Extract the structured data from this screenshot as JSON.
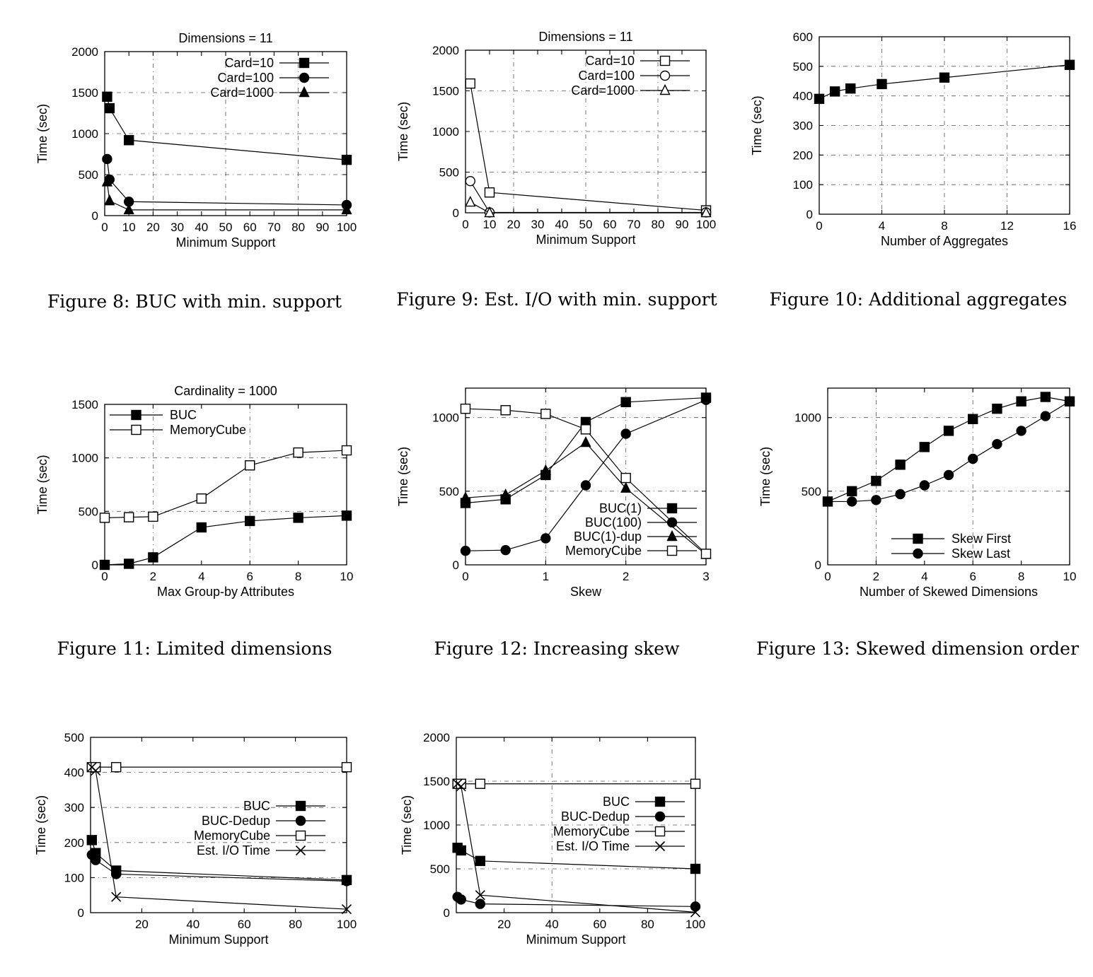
{
  "chart_data": [
    {
      "type": "line",
      "title": "Dimensions = 11",
      "caption": "Figure 8: BUC with min. support",
      "xlabel": "Minimum Support",
      "ylabel": "Time (sec)",
      "xlim": [
        0,
        100
      ],
      "ylim": [
        0,
        2000
      ],
      "xticks": [
        0,
        10,
        20,
        30,
        40,
        50,
        60,
        70,
        80,
        90,
        100
      ],
      "yticks": [
        0,
        500,
        1000,
        1500,
        2000
      ],
      "xgrid": [
        20,
        50,
        80
      ],
      "ygrid": [
        500,
        1000,
        1500
      ],
      "legend_position": "top-right",
      "series": [
        {
          "name": "Card=10",
          "marker": "filled-square",
          "x": [
            1,
            2,
            10,
            100
          ],
          "y": [
            1450,
            1310,
            920,
            680
          ]
        },
        {
          "name": "Card=100",
          "marker": "filled-circle",
          "x": [
            1,
            2,
            10,
            100
          ],
          "y": [
            690,
            440,
            170,
            130
          ]
        },
        {
          "name": "Card=1000",
          "marker": "filled-triangle",
          "x": [
            1,
            2,
            10,
            100
          ],
          "y": [
            410,
            180,
            70,
            70
          ]
        }
      ]
    },
    {
      "type": "line",
      "title": "Dimensions = 11",
      "caption": "Figure 9: Est. I/O with min. support",
      "xlabel": "Minimum Support",
      "ylabel": "Time (sec)",
      "xlim": [
        0,
        100
      ],
      "ylim": [
        0,
        2000
      ],
      "xticks": [
        0,
        10,
        20,
        30,
        40,
        50,
        60,
        70,
        80,
        90,
        100
      ],
      "yticks": [
        0,
        500,
        1000,
        1500,
        2000
      ],
      "xgrid": [
        20,
        50,
        80
      ],
      "ygrid": [
        500,
        1000,
        1500
      ],
      "legend_position": "top-right",
      "series": [
        {
          "name": "Card=10",
          "marker": "open-square",
          "x": [
            2,
            10,
            100
          ],
          "y": [
            1590,
            250,
            30
          ]
        },
        {
          "name": "Card=100",
          "marker": "open-circle",
          "x": [
            2,
            10,
            100
          ],
          "y": [
            390,
            5,
            5
          ]
        },
        {
          "name": "Card=1000",
          "marker": "open-triangle",
          "x": [
            2,
            10,
            100
          ],
          "y": [
            130,
            0,
            0
          ]
        }
      ]
    },
    {
      "type": "line",
      "title": "",
      "caption": "Figure 10: Additional aggregates",
      "xlabel": "Number of Aggregates",
      "ylabel": "Time (sec)",
      "xlim": [
        0,
        16
      ],
      "ylim": [
        0,
        600
      ],
      "xticks": [
        0,
        4,
        8,
        12,
        16
      ],
      "yticks": [
        0,
        100,
        200,
        300,
        400,
        500,
        600
      ],
      "xgrid": [
        4,
        8,
        12
      ],
      "ygrid": [
        100,
        200,
        300,
        400,
        500
      ],
      "series": [
        {
          "name": "",
          "marker": "filled-square",
          "x": [
            0,
            1,
            2,
            4,
            8,
            16
          ],
          "y": [
            390,
            415,
            425,
            440,
            462,
            505
          ]
        }
      ]
    },
    {
      "type": "line",
      "title": "Cardinality = 1000",
      "caption": "Figure 11: Limited dimensions",
      "xlabel": "Max Group-by Attributes",
      "ylabel": "Time (sec)",
      "xlim": [
        0,
        10
      ],
      "ylim": [
        0,
        1500
      ],
      "xticks": [
        0,
        2,
        4,
        6,
        8,
        10
      ],
      "yticks": [
        0,
        500,
        1000,
        1500
      ],
      "xgrid": [
        2,
        6
      ],
      "ygrid": [
        500,
        1000
      ],
      "legend_position": "top-left",
      "series": [
        {
          "name": "BUC",
          "marker": "filled-square",
          "x": [
            0,
            1,
            2,
            4,
            6,
            8,
            10
          ],
          "y": [
            0,
            10,
            70,
            350,
            410,
            440,
            460
          ]
        },
        {
          "name": "MemoryCube",
          "marker": "open-square",
          "x": [
            0,
            1,
            2,
            4,
            6,
            8,
            10
          ],
          "y": [
            440,
            445,
            450,
            620,
            930,
            1050,
            1070
          ]
        }
      ]
    },
    {
      "type": "line",
      "title": "",
      "caption": "Figure 12: Increasing skew",
      "xlabel": "Skew",
      "ylabel": "Time (sec)",
      "xlim": [
        0,
        3
      ],
      "ylim": [
        0,
        1200
      ],
      "xticks": [
        0,
        1,
        2,
        3
      ],
      "yticks": [
        0,
        500,
        1000
      ],
      "xgrid": [
        1,
        2
      ],
      "ygrid": [
        500,
        1000
      ],
      "legend_position": "bottom-right",
      "series": [
        {
          "name": "BUC(1)",
          "marker": "filled-square",
          "x": [
            0,
            0.5,
            1,
            1.5,
            2,
            3
          ],
          "y": [
            420,
            445,
            610,
            970,
            1105,
            1135
          ]
        },
        {
          "name": "BUC(100)",
          "marker": "filled-circle",
          "x": [
            0,
            0.5,
            1,
            1.5,
            2,
            3
          ],
          "y": [
            95,
            100,
            180,
            540,
            890,
            1120
          ]
        },
        {
          "name": "BUC(1)-dup",
          "marker": "filled-triangle",
          "x": [
            0,
            0.5,
            1,
            1.5,
            2,
            3
          ],
          "y": [
            455,
            475,
            640,
            830,
            520,
            70
          ]
        },
        {
          "name": "MemoryCube",
          "marker": "open-square",
          "x": [
            0,
            0.5,
            1,
            1.5,
            2,
            3
          ],
          "y": [
            1060,
            1050,
            1025,
            920,
            590,
            75
          ]
        }
      ]
    },
    {
      "type": "line",
      "title": "",
      "caption": "Figure 13: Skewed dimension order",
      "xlabel": "Number of Skewed Dimensions",
      "ylabel": "Time (sec)",
      "xlim": [
        0,
        10
      ],
      "ylim": [
        0,
        1200
      ],
      "xticks": [
        0,
        2,
        4,
        6,
        8,
        10
      ],
      "yticks": [
        0,
        500,
        1000
      ],
      "xgrid": [
        2,
        6
      ],
      "ygrid": [
        500,
        1000
      ],
      "legend_position": "bottom-right",
      "series": [
        {
          "name": "Skew First",
          "marker": "filled-square",
          "x": [
            0,
            1,
            2,
            3,
            4,
            5,
            6,
            7,
            8,
            9,
            10
          ],
          "y": [
            430,
            500,
            570,
            680,
            800,
            910,
            990,
            1060,
            1110,
            1140,
            1110
          ]
        },
        {
          "name": "Skew Last",
          "marker": "filled-circle",
          "x": [
            0,
            1,
            2,
            3,
            4,
            5,
            6,
            7,
            8,
            9,
            10
          ],
          "y": [
            430,
            430,
            440,
            480,
            540,
            610,
            720,
            820,
            910,
            1010,
            1110
          ]
        }
      ]
    },
    {
      "type": "line",
      "title": "",
      "caption": "",
      "xlabel": "Minimum Support",
      "ylabel": "Time (sec)",
      "xlim": [
        0,
        100
      ],
      "ylim": [
        0,
        500
      ],
      "xticks": [
        20,
        40,
        60,
        80,
        100
      ],
      "yticks": [
        0,
        100,
        200,
        300,
        400,
        500
      ],
      "xgrid": [],
      "ygrid": [
        100,
        200,
        300,
        400
      ],
      "legend_position": "center-right",
      "series": [
        {
          "name": "BUC",
          "marker": "filled-square",
          "x": [
            0.5,
            2,
            10,
            100
          ],
          "y": [
            207,
            170,
            120,
            93
          ]
        },
        {
          "name": "BUC-Dedup",
          "marker": "filled-circle",
          "x": [
            0.5,
            2,
            10,
            100
          ],
          "y": [
            165,
            150,
            110,
            90
          ]
        },
        {
          "name": "MemoryCube",
          "marker": "open-square",
          "x": [
            0.5,
            2,
            10,
            100
          ],
          "y": [
            415,
            415,
            415,
            415
          ]
        },
        {
          "name": "Est. I/O Time",
          "marker": "cross",
          "x": [
            0.5,
            2,
            10,
            100
          ],
          "y": [
            415,
            405,
            45,
            10
          ]
        }
      ]
    },
    {
      "type": "line",
      "title": "",
      "caption": "",
      "xlabel": "Minimum Support",
      "ylabel": "Time (sec)",
      "xlim": [
        0,
        100
      ],
      "ylim": [
        0,
        2000
      ],
      "xticks": [
        20,
        40,
        60,
        80,
        100
      ],
      "yticks": [
        0,
        500,
        1000,
        1500,
        2000
      ],
      "xgrid": [
        40
      ],
      "ygrid": [
        500,
        1000,
        1500
      ],
      "legend_position": "center-right",
      "series": [
        {
          "name": "BUC",
          "marker": "filled-square",
          "x": [
            0.5,
            2,
            10,
            100
          ],
          "y": [
            740,
            710,
            590,
            500
          ]
        },
        {
          "name": "BUC-Dedup",
          "marker": "filled-circle",
          "x": [
            0.5,
            2,
            10,
            100
          ],
          "y": [
            180,
            150,
            100,
            70
          ]
        },
        {
          "name": "MemoryCube",
          "marker": "open-square",
          "x": [
            0.5,
            2,
            10,
            100
          ],
          "y": [
            1470,
            1470,
            1470,
            1470
          ]
        },
        {
          "name": "Est. I/O Time",
          "marker": "cross",
          "x": [
            0.5,
            2,
            10,
            100
          ],
          "y": [
            1470,
            1440,
            200,
            5
          ]
        }
      ]
    }
  ]
}
